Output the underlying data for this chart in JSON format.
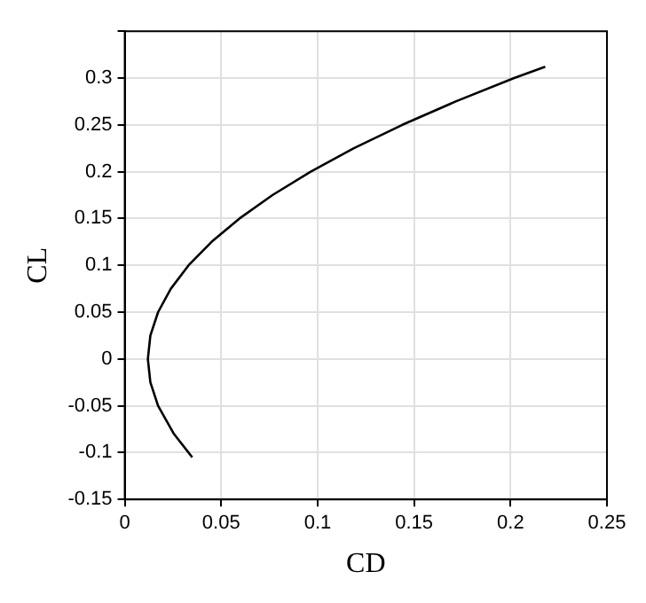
{
  "chart_data": {
    "type": "line",
    "xlabel": "CD",
    "ylabel": "CL",
    "series": [
      {
        "color": "#000000",
        "x": [
          0.035,
          0.0255,
          0.0173,
          0.0133,
          0.012,
          0.0133,
          0.0173,
          0.0239,
          0.0331,
          0.045,
          0.0595,
          0.0766,
          0.0964,
          0.1188,
          0.1439,
          0.1716,
          0.2019,
          0.218
        ],
        "values": [
          -0.105,
          -0.08,
          -0.05,
          -0.025,
          0,
          0.025,
          0.05,
          0.075,
          0.1,
          0.125,
          0.15,
          0.175,
          0.2,
          0.225,
          0.25,
          0.275,
          0.3,
          0.312
        ]
      }
    ],
    "xlim": [
      0,
      0.25
    ],
    "xticks": [
      0,
      0.05,
      0.1,
      0.15,
      0.2,
      0.25
    ],
    "ylim": [
      -0.15,
      0.35
    ],
    "yticks": [
      -0.15,
      -0.1,
      -0.05,
      0,
      0.05,
      0.1,
      0.15,
      0.2,
      0.25,
      0.3,
      {
        "value": 0.35,
        "label": null
      }
    ],
    "grid": true,
    "marker": "none",
    "line_style": "solid",
    "legend": false
  }
}
